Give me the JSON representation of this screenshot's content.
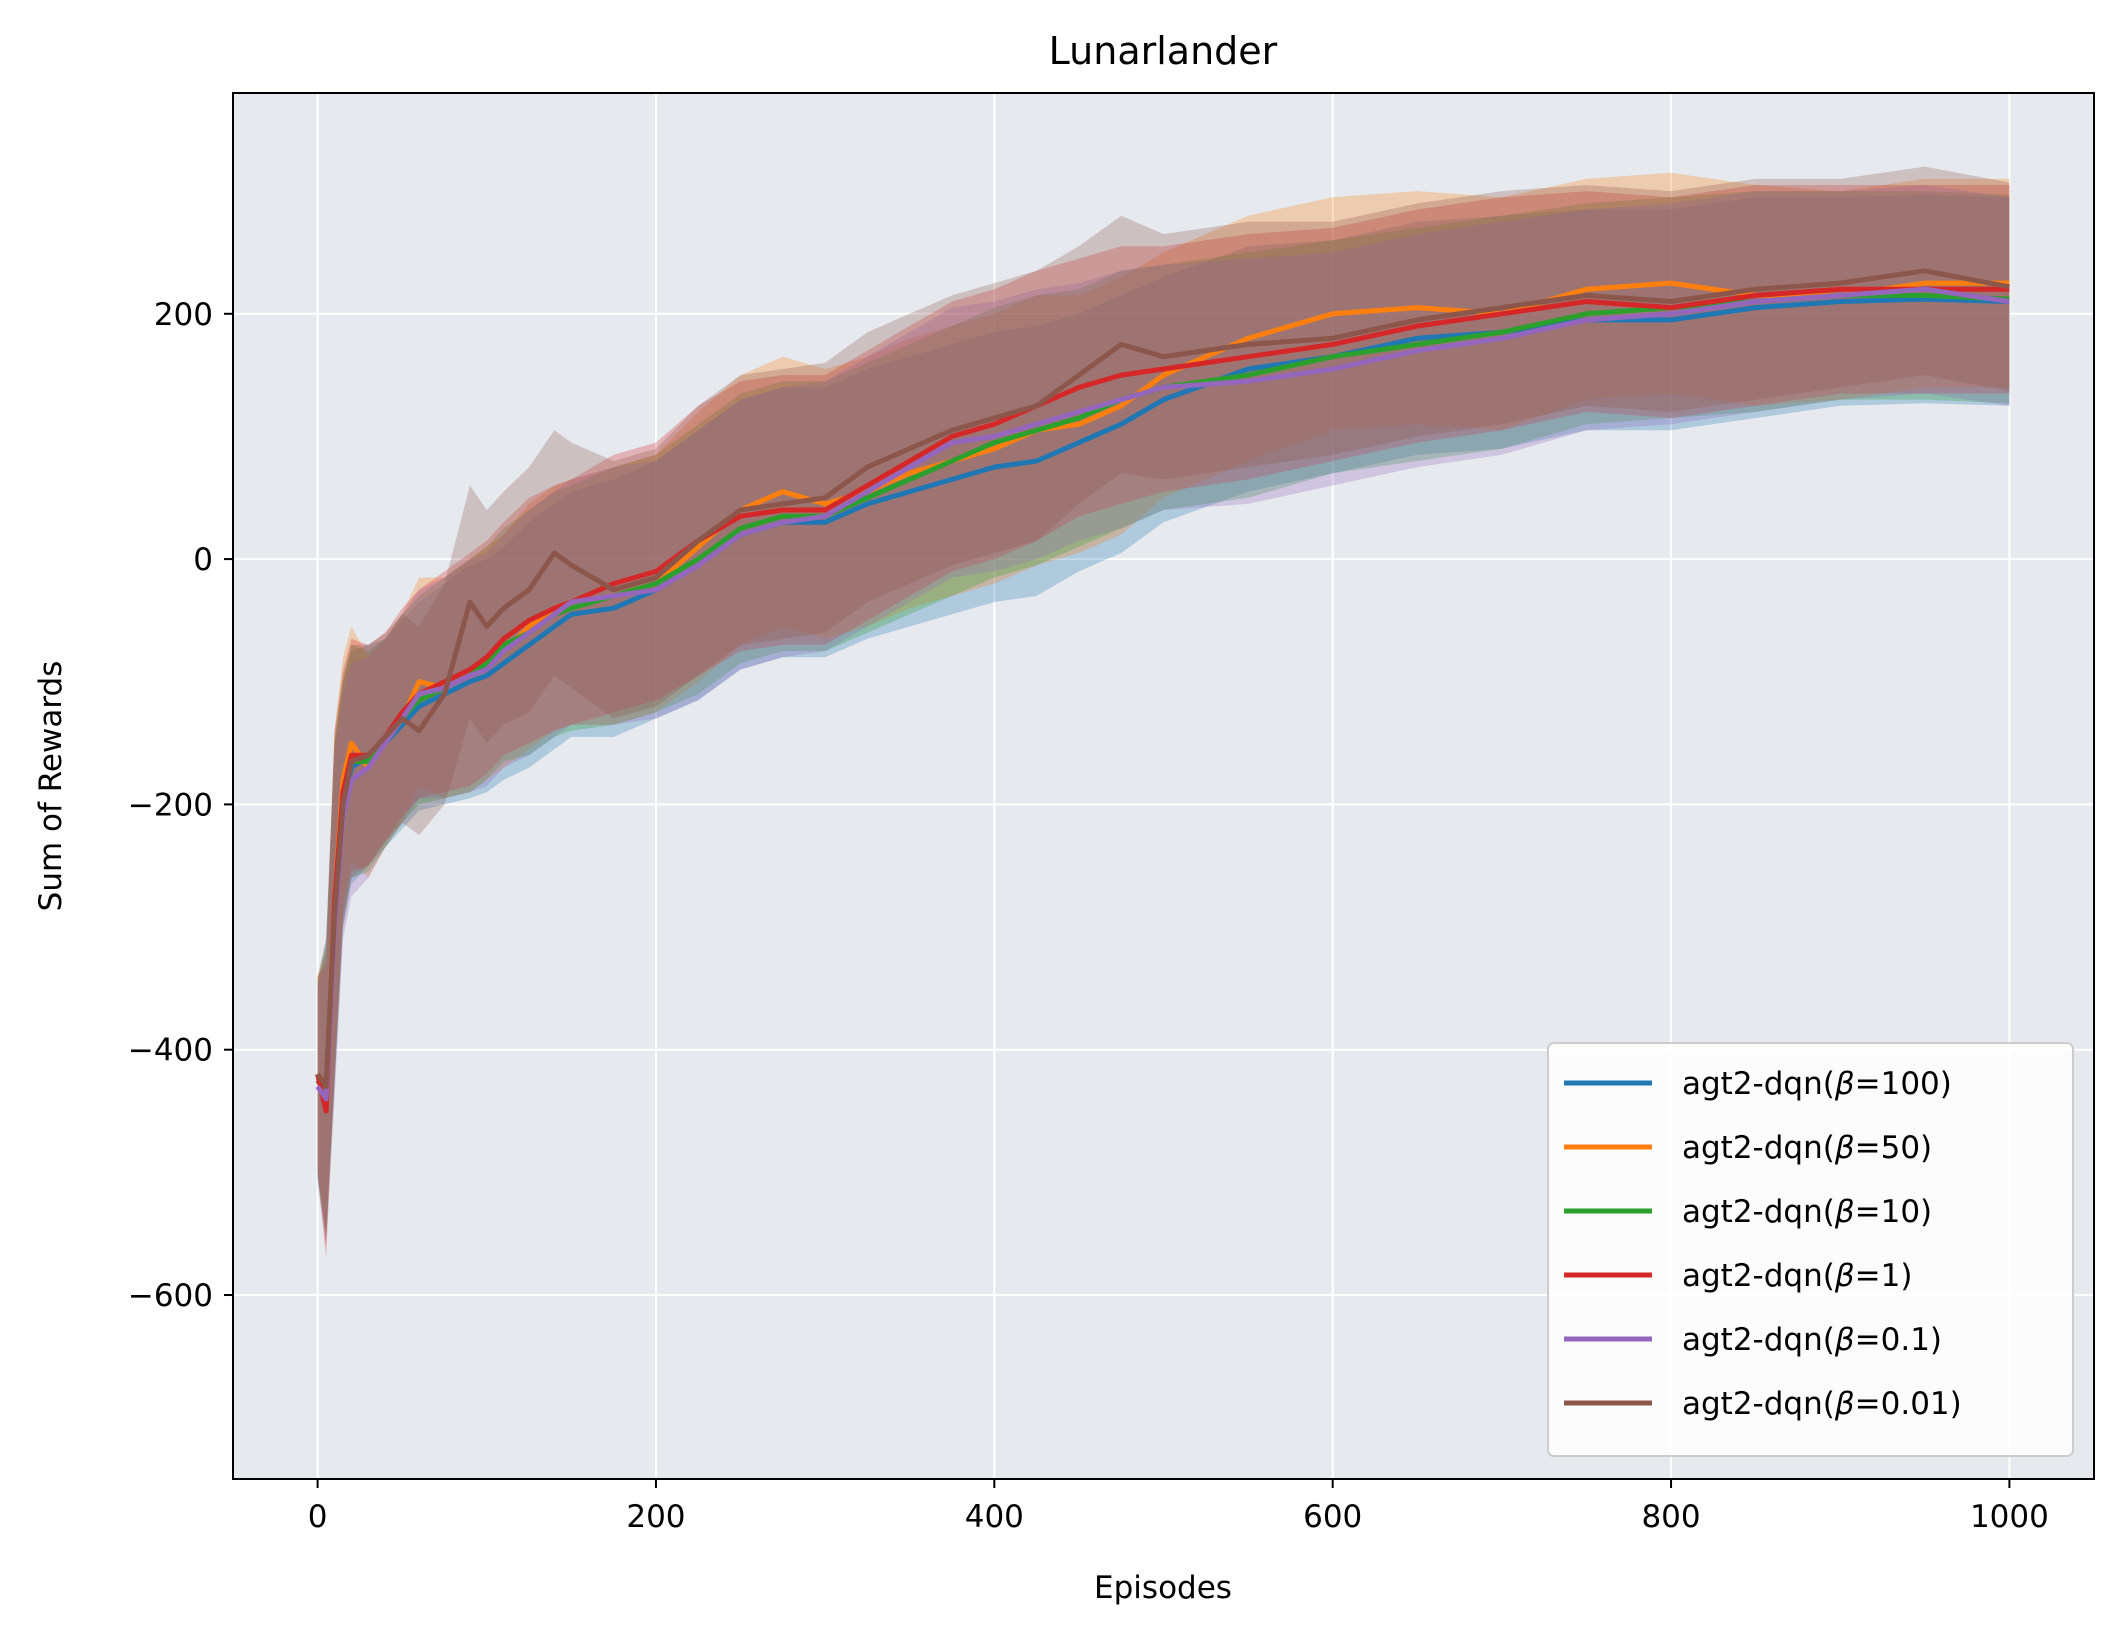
{
  "chart_data": {
    "type": "line",
    "title": "Lunarlander",
    "xlabel": "Episodes",
    "ylabel": "Sum of Rewards",
    "xlim": [
      -50,
      1050
    ],
    "ylim": [
      -750,
      380
    ],
    "xticks": [
      0,
      200,
      400,
      600,
      800,
      1000
    ],
    "yticks": [
      -600,
      -400,
      -200,
      0,
      200
    ],
    "xtick_labels": [
      "0",
      "200",
      "400",
      "600",
      "800",
      "1000"
    ],
    "ytick_labels": [
      "−600",
      "−400",
      "−200",
      "0",
      "200"
    ],
    "grid": true,
    "legend_position": "lower-right",
    "band": "shaded min/max band around each mean curve",
    "x": [
      0,
      5,
      10,
      15,
      20,
      30,
      40,
      50,
      60,
      75,
      90,
      100,
      110,
      125,
      140,
      150,
      175,
      200,
      225,
      250,
      275,
      300,
      325,
      350,
      375,
      400,
      425,
      450,
      475,
      500,
      550,
      600,
      650,
      700,
      750,
      800,
      850,
      900,
      950,
      1000
    ],
    "series": [
      {
        "name": "agt2-dqn(β=100)",
        "label_prefix": "agt2-dqn(",
        "label_greek": "β",
        "label_suffix": "=100)",
        "color": "#1f77b4",
        "values": [
          -425,
          -430,
          -290,
          -200,
          -170,
          -160,
          -150,
          -135,
          -120,
          -110,
          -100,
          -95,
          -85,
          -70,
          -55,
          -45,
          -40,
          -25,
          -5,
          20,
          30,
          30,
          45,
          55,
          65,
          75,
          80,
          95,
          110,
          130,
          155,
          165,
          180,
          185,
          195,
          195,
          205,
          210,
          212,
          210
        ],
        "band": [
          80,
          120,
          140,
          100,
          95,
          90,
          85,
          85,
          85,
          90,
          95,
          95,
          95,
          100,
          100,
          100,
          105,
          105,
          110,
          110,
          110,
          110,
          110,
          110,
          110,
          110,
          110,
          105,
          105,
          100,
          100,
          95,
          95,
          95,
          90,
          90,
          90,
          85,
          85,
          85
        ]
      },
      {
        "name": "agt2-dqn(β=50)",
        "label_prefix": "agt2-dqn(",
        "label_greek": "β",
        "label_suffix": "=50)",
        "color": "#ff7f0e",
        "values": [
          -420,
          -440,
          -280,
          -180,
          -150,
          -170,
          -150,
          -130,
          -100,
          -105,
          -95,
          -85,
          -75,
          -55,
          -40,
          -35,
          -30,
          -20,
          10,
          40,
          55,
          45,
          55,
          70,
          80,
          90,
          105,
          110,
          125,
          150,
          180,
          200,
          205,
          200,
          220,
          225,
          215,
          215,
          225,
          225
        ],
        "band": [
          80,
          120,
          140,
          100,
          95,
          90,
          85,
          85,
          85,
          90,
          95,
          95,
          95,
          100,
          100,
          100,
          105,
          105,
          110,
          110,
          110,
          110,
          110,
          110,
          110,
          110,
          110,
          105,
          105,
          100,
          100,
          95,
          95,
          95,
          90,
          90,
          90,
          85,
          85,
          85
        ]
      },
      {
        "name": "agt2-dqn(β=10)",
        "label_prefix": "agt2-dqn(",
        "label_greek": "β",
        "label_suffix": "=10)",
        "color": "#2ca02c",
        "values": [
          -425,
          -435,
          -285,
          -195,
          -165,
          -165,
          -150,
          -130,
          -115,
          -105,
          -95,
          -85,
          -70,
          -60,
          -45,
          -40,
          -30,
          -20,
          0,
          25,
          35,
          35,
          50,
          65,
          80,
          95,
          105,
          115,
          130,
          140,
          150,
          165,
          175,
          185,
          200,
          205,
          210,
          215,
          215,
          212
        ],
        "band": [
          80,
          120,
          140,
          100,
          95,
          90,
          85,
          85,
          85,
          90,
          95,
          95,
          95,
          100,
          100,
          100,
          105,
          105,
          110,
          110,
          110,
          110,
          110,
          110,
          110,
          110,
          110,
          105,
          105,
          100,
          100,
          95,
          95,
          95,
          90,
          90,
          90,
          85,
          85,
          85
        ]
      },
      {
        "name": "agt2-dqn(β=1)",
        "label_prefix": "agt2-dqn(",
        "label_greek": "β",
        "label_suffix": "=1)",
        "color": "#d62728",
        "values": [
          -420,
          -450,
          -280,
          -190,
          -160,
          -160,
          -145,
          -125,
          -110,
          -100,
          -90,
          -80,
          -65,
          -50,
          -40,
          -35,
          -20,
          -10,
          15,
          35,
          40,
          40,
          60,
          80,
          100,
          110,
          125,
          140,
          150,
          155,
          165,
          175,
          190,
          200,
          210,
          205,
          215,
          220,
          220,
          220
        ],
        "band": [
          80,
          120,
          140,
          100,
          95,
          90,
          85,
          85,
          85,
          90,
          95,
          95,
          95,
          100,
          100,
          100,
          105,
          105,
          110,
          110,
          110,
          110,
          110,
          110,
          110,
          110,
          110,
          105,
          105,
          100,
          100,
          95,
          95,
          95,
          90,
          90,
          90,
          85,
          85,
          85
        ]
      },
      {
        "name": "agt2-dqn(β=0.1)",
        "label_prefix": "agt2-dqn(",
        "label_greek": "β",
        "label_suffix": "=0.1)",
        "color": "#9467bd",
        "values": [
          -430,
          -440,
          -300,
          -210,
          -180,
          -170,
          -150,
          -130,
          -110,
          -105,
          -95,
          -90,
          -75,
          -60,
          -45,
          -35,
          -30,
          -25,
          -5,
          20,
          30,
          35,
          55,
          75,
          95,
          100,
          110,
          120,
          130,
          140,
          145,
          155,
          170,
          180,
          195,
          200,
          210,
          215,
          220,
          210
        ],
        "band": [
          80,
          120,
          140,
          100,
          95,
          90,
          85,
          85,
          85,
          90,
          95,
          95,
          95,
          100,
          100,
          100,
          105,
          105,
          110,
          110,
          110,
          110,
          110,
          110,
          110,
          110,
          110,
          105,
          105,
          100,
          100,
          95,
          95,
          95,
          90,
          90,
          90,
          85,
          85,
          85
        ]
      },
      {
        "name": "agt2-dqn(β=0.01)",
        "label_prefix": "agt2-dqn(",
        "label_greek": "β",
        "label_suffix": "=0.01)",
        "color": "#8c564b",
        "values": [
          -420,
          -430,
          -290,
          -200,
          -165,
          -160,
          -145,
          -130,
          -140,
          -110,
          -35,
          -55,
          -40,
          -25,
          5,
          -5,
          -25,
          -15,
          15,
          40,
          45,
          50,
          75,
          90,
          105,
          115,
          125,
          150,
          175,
          165,
          175,
          180,
          195,
          205,
          215,
          210,
          220,
          225,
          235,
          222
        ],
        "band": [
          80,
          120,
          140,
          100,
          95,
          90,
          85,
          85,
          85,
          90,
          95,
          95,
          95,
          100,
          100,
          100,
          105,
          105,
          110,
          110,
          110,
          110,
          110,
          110,
          110,
          110,
          110,
          105,
          105,
          100,
          100,
          95,
          95,
          95,
          90,
          90,
          90,
          85,
          85,
          85
        ]
      }
    ]
  }
}
